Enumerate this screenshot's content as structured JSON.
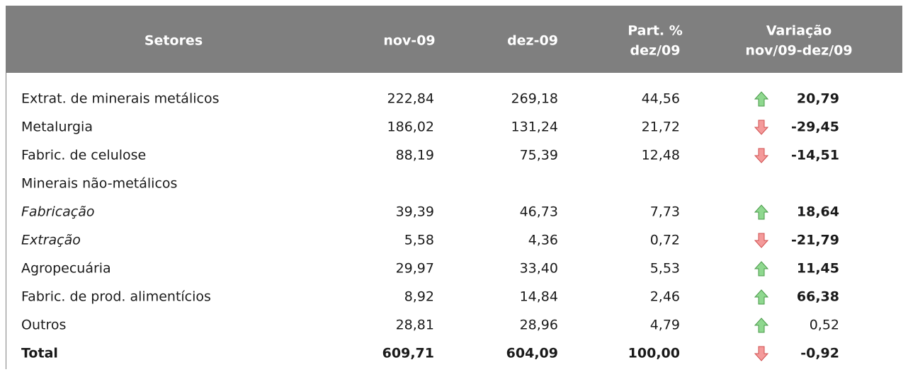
{
  "header": {
    "columns": [
      [
        "Setores"
      ],
      [
        "nov-09"
      ],
      [
        "dez-09"
      ],
      [
        "Part. %",
        "dez/09"
      ],
      [
        "Variação",
        "nov/09-dez/09"
      ]
    ]
  },
  "table": {
    "rows": [
      {
        "label": "Extrat. de minerais metálicos",
        "cells": [
          "222,84",
          "269,18",
          "44,56"
        ],
        "variation": "20,79",
        "trend": "up",
        "bold_variation": true
      },
      {
        "label": "Metalurgia",
        "cells": [
          "186,02",
          "131,24",
          "21,72"
        ],
        "variation": "-29,45",
        "trend": "down",
        "bold_variation": true
      },
      {
        "label": "Fabric. de celulose",
        "cells": [
          "88,19",
          "75,39",
          "12,48"
        ],
        "variation": "-14,51",
        "trend": "down",
        "bold_variation": true
      },
      {
        "label": "Minerais não-metálicos"
      },
      {
        "label": "Fabricação",
        "italic": true,
        "cells": [
          "39,39",
          "46,73",
          "7,73"
        ],
        "variation": "18,64",
        "trend": "up",
        "bold_variation": true
      },
      {
        "label": "Extração",
        "italic": true,
        "cells": [
          "5,58",
          "4,36",
          "0,72"
        ],
        "variation": "-21,79",
        "trend": "down",
        "bold_variation": true
      },
      {
        "label": "Agropecuária",
        "cells": [
          "29,97",
          "33,40",
          "5,53"
        ],
        "variation": "11,45",
        "trend": "up",
        "bold_variation": true
      },
      {
        "label": "Fabric. de prod. alimentícios",
        "cells": [
          "8,92",
          "14,84",
          "2,46"
        ],
        "variation": "66,38",
        "trend": "up",
        "bold_variation": true
      },
      {
        "label": "Outros",
        "cells": [
          "28,81",
          "28,96",
          "4,79"
        ],
        "variation": "0,52",
        "trend": "up",
        "bold_variation": false
      },
      {
        "label": "Total",
        "bold": true,
        "cells": [
          "609,71",
          "604,09",
          "100,00"
        ],
        "variation": "-0,92",
        "trend": "down",
        "bold_variation": true
      }
    ]
  }
}
